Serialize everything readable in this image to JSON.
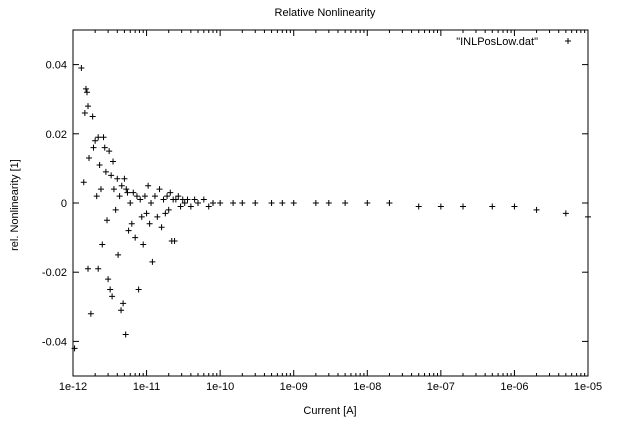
{
  "chart_data": {
    "type": "scatter",
    "title": "Relative Nonlinearity",
    "xlabel": "Current [A]",
    "ylabel": "rel. Nonlinearity [1]",
    "x_scale": "log",
    "xlim": [
      1e-12,
      1e-05
    ],
    "ylim": [
      -0.05,
      0.05
    ],
    "x_ticks": [
      1e-12,
      1e-11,
      1e-10,
      1e-09,
      1e-08,
      1e-07,
      1e-06,
      1e-05
    ],
    "x_tick_labels": [
      "1e-12",
      "1e-11",
      "1e-10",
      "1e-09",
      "1e-08",
      "1e-07",
      "1e-06",
      "1e-05"
    ],
    "y_ticks": [
      -0.04,
      -0.02,
      0,
      0.02,
      0.04
    ],
    "y_tick_labels": [
      "-0.04",
      "-0.02",
      "0",
      "0.02",
      "0.04"
    ],
    "grid": false,
    "legend_position": "top-right",
    "marker": "+",
    "series": [
      {
        "name": "\"INLPosLow.dat\"",
        "points": [
          [
            1.05e-12,
            -0.042
          ],
          [
            1.3e-12,
            0.039
          ],
          [
            1.4e-12,
            0.006
          ],
          [
            1.45e-12,
            0.026
          ],
          [
            1.5e-12,
            0.033
          ],
          [
            1.55e-12,
            0.032
          ],
          [
            1.6e-12,
            0.028
          ],
          [
            1.65e-12,
            0.013
          ],
          [
            1.6e-12,
            -0.019
          ],
          [
            1.75e-12,
            -0.032
          ],
          [
            1.85e-12,
            0.025
          ],
          [
            1.9e-12,
            0.016
          ],
          [
            2e-12,
            0.018
          ],
          [
            2.1e-12,
            0.002
          ],
          [
            2.2e-12,
            -0.019
          ],
          [
            2.2e-12,
            0.019
          ],
          [
            2.3e-12,
            0.011
          ],
          [
            2.4e-12,
            0.004
          ],
          [
            2.5e-12,
            -0.012
          ],
          [
            2.6e-12,
            0.019
          ],
          [
            2.7e-12,
            0.016
          ],
          [
            2.8e-12,
            0.009
          ],
          [
            2.9e-12,
            -0.005
          ],
          [
            3e-12,
            -0.022
          ],
          [
            3.1e-12,
            0.015
          ],
          [
            3.2e-12,
            -0.025
          ],
          [
            3.3e-12,
            0.008
          ],
          [
            3.4e-12,
            -0.027
          ],
          [
            3.5e-12,
            0.012
          ],
          [
            3.6e-12,
            0.004
          ],
          [
            3.8e-12,
            -0.002
          ],
          [
            4e-12,
            0.007
          ],
          [
            4.1e-12,
            -0.015
          ],
          [
            4.3e-12,
            0.002
          ],
          [
            4.5e-12,
            -0.031
          ],
          [
            4.6e-12,
            0.005
          ],
          [
            4.8e-12,
            -0.029
          ],
          [
            5e-12,
            0.007
          ],
          [
            5.2e-12,
            -0.038
          ],
          [
            5.3e-12,
            0.004
          ],
          [
            5.5e-12,
            0.003
          ],
          [
            5.7e-12,
            -0.008
          ],
          [
            6e-12,
            0.0
          ],
          [
            6.3e-12,
            -0.006
          ],
          [
            6.6e-12,
            0.003
          ],
          [
            7e-12,
            -0.01
          ],
          [
            7.4e-12,
            0.002
          ],
          [
            7.8e-12,
            -0.025
          ],
          [
            8.2e-12,
            0.001
          ],
          [
            8.6e-12,
            -0.004
          ],
          [
            9e-12,
            -0.012
          ],
          [
            9.5e-12,
            0.002
          ],
          [
            1e-11,
            -0.003
          ],
          [
            1.05e-11,
            0.005
          ],
          [
            1.1e-11,
            -0.006
          ],
          [
            1.15e-11,
            0.0
          ],
          [
            1.2e-11,
            -0.017
          ],
          [
            1.3e-11,
            0.002
          ],
          [
            1.4e-11,
            -0.004
          ],
          [
            1.5e-11,
            0.004
          ],
          [
            1.6e-11,
            -0.007
          ],
          [
            1.7e-11,
            0.001
          ],
          [
            1.8e-11,
            -0.003
          ],
          [
            1.9e-11,
            0.002
          ],
          [
            2e-11,
            -0.002
          ],
          [
            2.1e-11,
            0.003
          ],
          [
            2.2e-11,
            -0.011
          ],
          [
            2.3e-11,
            0.001
          ],
          [
            2.4e-11,
            -0.011
          ],
          [
            2.5e-11,
            0.001
          ],
          [
            2.7e-11,
            0.002
          ],
          [
            2.9e-11,
            -0.001
          ],
          [
            3.1e-11,
            0.001
          ],
          [
            3.3e-11,
            0.0
          ],
          [
            3.6e-11,
            0.001
          ],
          [
            4e-11,
            -0.001
          ],
          [
            4.5e-11,
            0.001
          ],
          [
            5e-11,
            0.0
          ],
          [
            6e-11,
            0.001
          ],
          [
            7e-11,
            -0.001
          ],
          [
            8e-11,
            0.0
          ],
          [
            1e-10,
            0.0
          ],
          [
            1.5e-10,
            0.0
          ],
          [
            2e-10,
            0.0
          ],
          [
            3e-10,
            0.0
          ],
          [
            5e-10,
            0.0
          ],
          [
            7e-10,
            0.0
          ],
          [
            1e-09,
            0.0
          ],
          [
            2e-09,
            0.0
          ],
          [
            3e-09,
            0.0
          ],
          [
            5e-09,
            0.0
          ],
          [
            1e-08,
            0.0
          ],
          [
            2e-08,
            0.0
          ],
          [
            5e-08,
            -0.001
          ],
          [
            1e-07,
            -0.001
          ],
          [
            2e-07,
            -0.001
          ],
          [
            5e-07,
            -0.001
          ],
          [
            1e-06,
            -0.001
          ],
          [
            2e-06,
            -0.002
          ],
          [
            5e-06,
            -0.003
          ],
          [
            1e-05,
            -0.004
          ]
        ]
      }
    ]
  }
}
